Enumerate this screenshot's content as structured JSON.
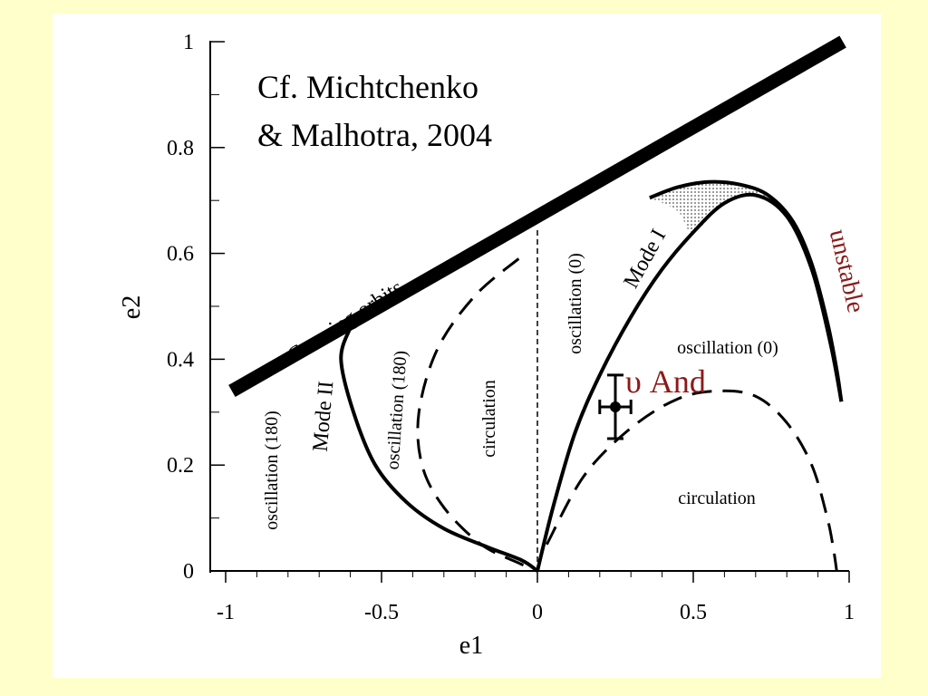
{
  "colors": {
    "background": "#ffffcc",
    "panel": "#ffffff",
    "ink": "#000000",
    "highlight": "#8b1a1a"
  },
  "citation": {
    "line1": "Cf. Michtchenko",
    "line2": "& Malhotra, 2004"
  },
  "labels": {
    "crossing": "Crossing orbits",
    "unstable": "unstable",
    "mode_i": "Mode I",
    "mode_ii": "Mode II",
    "osc180_left": "oscillation (180)",
    "osc180_mid": "oscillation (180)",
    "circ_left": "circulation",
    "osc0_vert": "oscillation (0)",
    "osc0_right": "oscillation (0)",
    "circ_right": "circulation",
    "upsilon_and": "υ And"
  },
  "chart_data": {
    "type": "line",
    "xlabel": "e1",
    "ylabel": "e2",
    "xlim": [
      -1,
      1
    ],
    "ylim": [
      0,
      1
    ],
    "x_ticks": [
      "-1",
      "-0.5",
      "0",
      "0.5",
      "1"
    ],
    "y_ticks": [
      "0",
      "0.2",
      "0.4",
      "0.6",
      "0.8",
      "1"
    ],
    "x_tick_values": [
      -1,
      -0.5,
      0,
      0.5,
      1
    ],
    "y_tick_values": [
      0,
      0.2,
      0.4,
      0.6,
      0.8,
      1
    ],
    "series": [
      {
        "name": "Crossing orbits",
        "style": "thick",
        "x": [
          -0.98,
          0.98
        ],
        "y": [
          0.34,
          1.0
        ]
      },
      {
        "name": "Mode II",
        "style": "solid",
        "x": [
          -0.6,
          -0.63,
          -0.59,
          -0.52,
          -0.42,
          -0.3,
          -0.16,
          -0.05,
          0.0
        ],
        "y": [
          0.46,
          0.4,
          0.3,
          0.2,
          0.13,
          0.08,
          0.045,
          0.02,
          0.0
        ]
      },
      {
        "name": "",
        "style": "dashed",
        "x": [
          -0.06,
          -0.2,
          -0.32,
          -0.38,
          -0.37,
          -0.3,
          -0.18,
          -0.06,
          0.0
        ],
        "y": [
          0.59,
          0.52,
          0.42,
          0.3,
          0.2,
          0.12,
          0.05,
          0.015,
          0.0
        ]
      },
      {
        "name": "",
        "style": "thin-dashed",
        "x": [
          0.0,
          0.0
        ],
        "y": [
          0.0,
          0.65
        ]
      },
      {
        "name": "Mode I",
        "style": "solid",
        "x": [
          0.0,
          0.05,
          0.12,
          0.2,
          0.3,
          0.4,
          0.5,
          0.6,
          0.7,
          0.8,
          0.88,
          0.94,
          0.975
        ],
        "y": [
          0.0,
          0.12,
          0.26,
          0.37,
          0.48,
          0.57,
          0.64,
          0.695,
          0.71,
          0.67,
          0.57,
          0.43,
          0.32
        ]
      },
      {
        "name": "",
        "style": "solid",
        "x": [
          0.36,
          0.45,
          0.55,
          0.65,
          0.74,
          0.82,
          0.88,
          0.93,
          0.96,
          0.975
        ],
        "y": [
          0.705,
          0.725,
          0.735,
          0.73,
          0.71,
          0.66,
          0.58,
          0.47,
          0.38,
          0.32
        ]
      },
      {
        "name": "",
        "style": "dashed",
        "x": [
          0.03,
          0.15,
          0.3,
          0.45,
          0.58,
          0.7,
          0.8,
          0.88,
          0.93,
          0.95,
          0.96
        ],
        "y": [
          0.05,
          0.18,
          0.27,
          0.325,
          0.34,
          0.33,
          0.28,
          0.2,
          0.1,
          0.04,
          0.0
        ]
      }
    ],
    "data_point": {
      "x": 0.25,
      "y": 0.31,
      "x_err": [
        0.2,
        0.3
      ],
      "y_err": [
        0.25,
        0.37
      ]
    }
  }
}
